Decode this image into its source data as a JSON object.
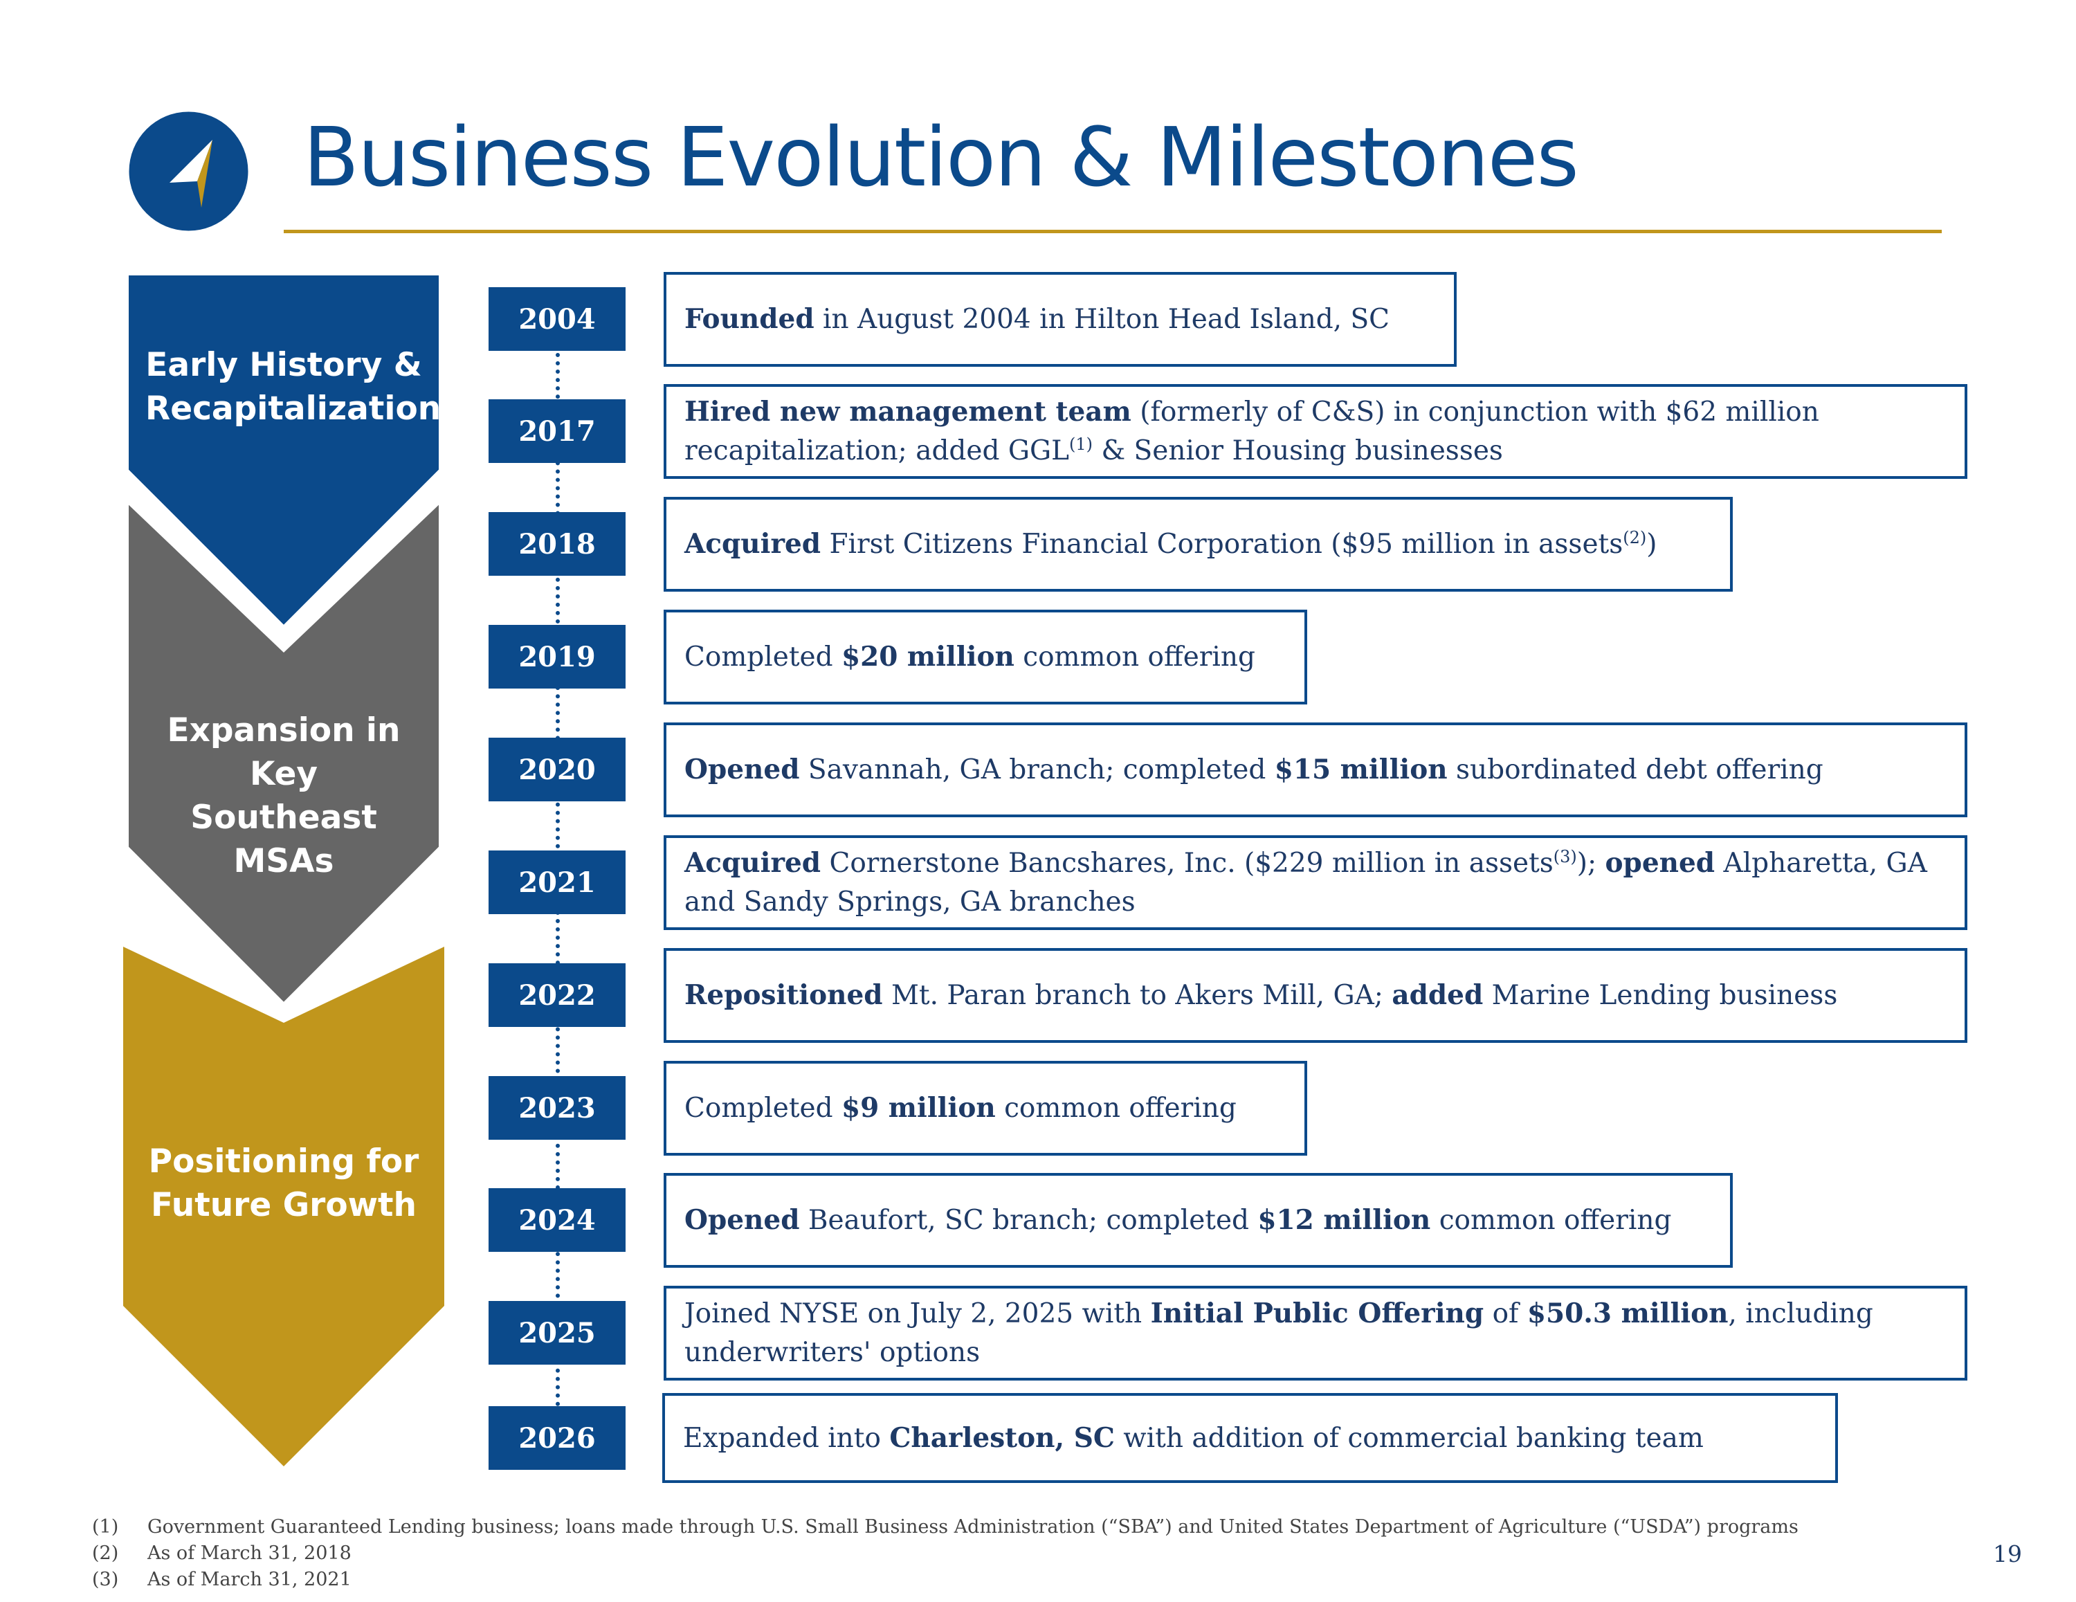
{
  "title": "Business Evolution & Milestones",
  "colors": {
    "navy": "#0b4a8b",
    "gray": "#666666",
    "gold": "#c1961c",
    "text": "#1e3a66"
  },
  "logo": {
    "icon": "compass-arrow-icon"
  },
  "phases": [
    {
      "line1": "Early History &",
      "line2": "Recapitalization",
      "color": "#0b4a8b"
    },
    {
      "line1": "Expansion in Key",
      "line2": "Southeast MSAs",
      "color": "#666666"
    },
    {
      "line1": "Positioning for",
      "line2": "Future Growth",
      "color": "#c1961c"
    }
  ],
  "milestones": [
    {
      "year": "2004",
      "p0": "Founded",
      "p1": " in August 2004 in Hilton Head Island, SC"
    },
    {
      "year": "2017",
      "p0": "Hired new management team",
      "p1": " (formerly of C&S) in conjunction with $62 million recapitalization; added GGL",
      "p2": "(1)",
      "p3": " & Senior Housing businesses"
    },
    {
      "year": "2018",
      "p0": "Acquired",
      "p1": " First Citizens Financial Corporation ($95 million in assets",
      "p2": "(2)",
      "p3": ")"
    },
    {
      "year": "2019",
      "p0": "Completed ",
      "p1": "$20 million",
      "p2": " common offering"
    },
    {
      "year": "2020",
      "p0": "Opened",
      "p1": " Savannah, GA branch; completed ",
      "p2": "$15 million",
      "p3": " subordinated debt offering"
    },
    {
      "year": "2021",
      "p0": "Acquired",
      "p1": " Cornerstone Bancshares, Inc. ($229 million in assets",
      "p2": "(3)",
      "p3": "); ",
      "p4": "opened",
      "p5": " Alpharetta, GA and Sandy Springs, GA branches"
    },
    {
      "year": "2022",
      "p0": "Repositioned",
      "p1": " Mt. Paran branch to Akers Mill, GA; ",
      "p2": "added",
      "p3": " Marine Lending business"
    },
    {
      "year": "2023",
      "p0": "Completed ",
      "p1": "$9 million",
      "p2": " common offering"
    },
    {
      "year": "2024",
      "p0": "Opened",
      "p1": " Beaufort, SC branch; completed ",
      "p2": "$12 million",
      "p3": " common offering"
    },
    {
      "year": "2025",
      "p0": "Joined NYSE on July 2, 2025 with ",
      "p1": "Initial Public Offering",
      "p2": " of ",
      "p3": "$50.3 million",
      "p4": ", including underwriters' options"
    },
    {
      "year": "2026",
      "p0": "Expanded into ",
      "p1": "Charleston, SC",
      "p2": " with addition of commercial banking team"
    }
  ],
  "footnotes": [
    {
      "num": "(1)",
      "text": "Government Guaranteed Lending business; loans made through U.S. Small Business Administration (“SBA”) and United States Department of Agriculture (“USDA”) programs"
    },
    {
      "num": "(2)",
      "text": "As of March 31, 2018"
    },
    {
      "num": "(3)",
      "text": "As of March 31, 2021"
    }
  ],
  "page_number": "19"
}
